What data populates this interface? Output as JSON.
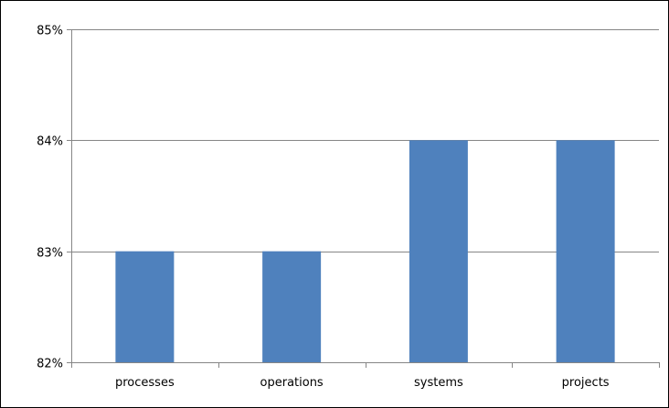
{
  "chart_data": {
    "type": "bar",
    "categories": [
      "processes",
      "operations",
      "systems",
      "projects"
    ],
    "values": [
      83,
      83,
      84,
      84
    ],
    "ylim": [
      82,
      85
    ],
    "yticks": [
      82,
      83,
      84,
      85
    ],
    "ytick_labels": [
      "82%",
      "83%",
      "84%",
      "85%"
    ],
    "title": "",
    "xlabel": "",
    "ylabel": "",
    "grid": "horizontal",
    "legend": "none",
    "bar_color": "#4F81BD",
    "grid_color": "#868686"
  }
}
